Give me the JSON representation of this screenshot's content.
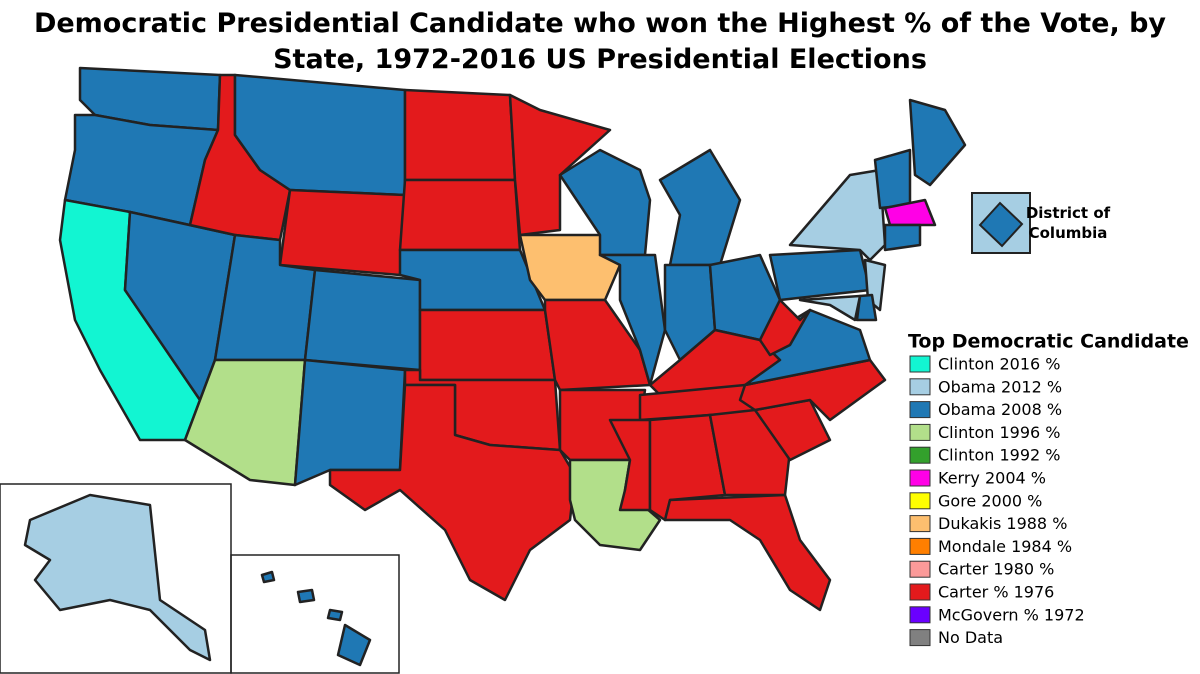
{
  "title_lines": [
    "Democratic Presidential Candidate who won the Highest % of the Vote, by",
    "State, 1972-2016 US Presidential Elections"
  ],
  "inset_label": "District of Columbia",
  "legend": {
    "title": "Top Democratic Candidate",
    "items": [
      {
        "label": "Clinton 2016 %",
        "color": "#12f5d2"
      },
      {
        "label": "Obama 2012 %",
        "color": "#a6cee3"
      },
      {
        "label": "Obama 2008 %",
        "color": "#1f78b4"
      },
      {
        "label": "Clinton 1996 %",
        "color": "#b2df8a"
      },
      {
        "label": "Clinton 1992 %",
        "color": "#33a02c"
      },
      {
        "label": "Kerry 2004 %",
        "color": "#ff00e6"
      },
      {
        "label": "Gore 2000 %",
        "color": "#ffff00"
      },
      {
        "label": "Dukakis 1988 %",
        "color": "#fdbf6f"
      },
      {
        "label": "Mondale 1984 %",
        "color": "#ff7f00"
      },
      {
        "label": "Carter 1980 %",
        "color": "#fb9a99"
      },
      {
        "label": "Carter % 1976",
        "color": "#e31a1c"
      },
      {
        "label": "McGovern % 1972",
        "color": "#6a00ff"
      },
      {
        "label": "No Data",
        "color": "#808080"
      }
    ]
  }
}
